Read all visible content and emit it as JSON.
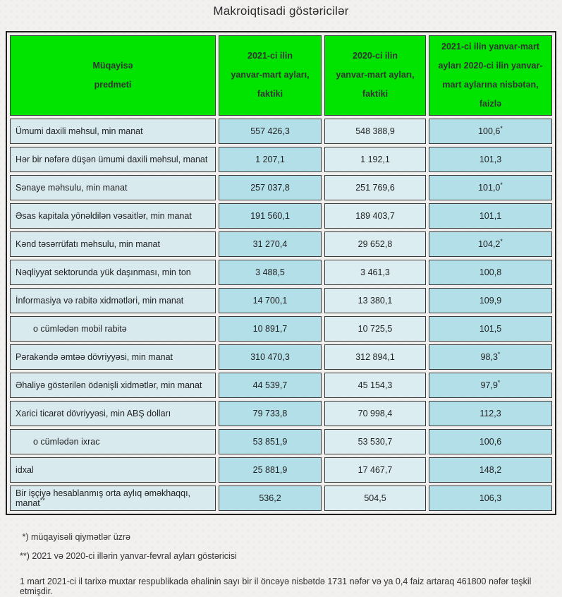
{
  "page": {
    "title": "Makroiqtisadi göstəricilər"
  },
  "table": {
    "header": {
      "col1": "Müqayisə\npredmeti",
      "col2": "2021-ci ilin\nyanvar-mart ayları,\nfaktiki",
      "col3": "2020-ci ilin\nyanvar-mart ayları,\nfaktiki",
      "col4": "2021-ci ilin yanvar-mart\nayları 2020-ci ilin yanvar-\nmart aylarına nisbətən,\nfaizlə"
    },
    "colors": {
      "header_bg": "#00e400",
      "label_cell_bg": "#d8eaee",
      "value_2021_bg": "#b3dfe9",
      "value_2020_bg": "#dbedf1",
      "percent_bg": "#b3dfe9",
      "border": "#3a3a3a"
    },
    "rows": [
      {
        "label": "Ümumi daxili məhsul, min manat",
        "label_note": "",
        "indent": false,
        "v2021": "557 426,3",
        "v2020": "548 388,9",
        "pct": "100,6",
        "pct_note": "*"
      },
      {
        "label": "Hər bir nəfərə düşən ümumi daxili məhsul, manat",
        "label_note": "",
        "indent": false,
        "v2021": "1 207,1",
        "v2020": "1 192,1",
        "pct": "101,3",
        "pct_note": ""
      },
      {
        "label": "Sənaye məhsulu, min manat",
        "label_note": "",
        "indent": false,
        "v2021": "257 037,8",
        "v2020": "251 769,6",
        "pct": "101,0",
        "pct_note": "*"
      },
      {
        "label": "Əsas kapitala yönəldilən vəsaitlər, min manat",
        "label_note": "",
        "indent": false,
        "v2021": "191 560,1",
        "v2020": "189 403,7",
        "pct": "101,1",
        "pct_note": ""
      },
      {
        "label": "Kənd təsərrüfatı məhsulu, min manat",
        "label_note": "",
        "indent": false,
        "v2021": "31 270,4",
        "v2020": "29 652,8",
        "pct": "104,2",
        "pct_note": "*"
      },
      {
        "label": "Nəqliyyat sektorunda yük daşınması, min ton",
        "label_note": "",
        "indent": false,
        "v2021": "3 488,5",
        "v2020": "3 461,3",
        "pct": "100,8",
        "pct_note": ""
      },
      {
        "label": "İnformasiya və rabitə xidmətləri, min manat",
        "label_note": "",
        "indent": false,
        "v2021": "14 700,1",
        "v2020": "13 380,1",
        "pct": "109,9",
        "pct_note": ""
      },
      {
        "label": "o cümlədən mobil rabitə",
        "label_note": "",
        "indent": true,
        "v2021": "10 891,7",
        "v2020": "10 725,5",
        "pct": "101,5",
        "pct_note": ""
      },
      {
        "label": "Pərakəndə əmtəə dövriyyəsi, min manat",
        "label_note": "",
        "indent": false,
        "v2021": "310 470,3",
        "v2020": "312 894,1",
        "pct": "98,3",
        "pct_note": "*"
      },
      {
        "label": "Əhaliyə göstərilən ödənişli xidmətlər, min manat",
        "label_note": "",
        "indent": false,
        "v2021": "44 539,7",
        "v2020": "45 154,3",
        "pct": "97,9",
        "pct_note": "*"
      },
      {
        "label": "Xarici ticarət dövriyyəsi, min ABŞ dolları",
        "label_note": "",
        "indent": false,
        "v2021": "79 733,8",
        "v2020": "70 998,4",
        "pct": "112,3",
        "pct_note": ""
      },
      {
        "label": "o cümlədən ixrac",
        "label_note": "",
        "indent": true,
        "v2021": "53 851,9",
        "v2020": "53 530,7",
        "pct": "100,6",
        "pct_note": ""
      },
      {
        "label": "idxal",
        "label_note": "",
        "indent": false,
        "v2021": "25 881,9",
        "v2020": "17 467,7",
        "pct": "148,2",
        "pct_note": ""
      },
      {
        "label": "Bir işçiyə hesablanmış orta aylıq əməkhaqqı, manat",
        "label_note": "**",
        "indent": false,
        "v2021": "536,2",
        "v2020": "504,5",
        "pct": "106,3",
        "pct_note": ""
      }
    ]
  },
  "footnotes": [
    " *) müqayisəli qiymətlər üzrə",
    "**) 2021 və 2020-ci illərin yanvar-fevral ayları göstəricisi"
  ],
  "summary": "1 mart 2021-ci il tarixə muxtar respublikada əhalinin sayı bir il öncəyə nisbətdə 1731 nəfər və ya 0,4 faiz artaraq 461800 nəfər təşkil etmişdir."
}
